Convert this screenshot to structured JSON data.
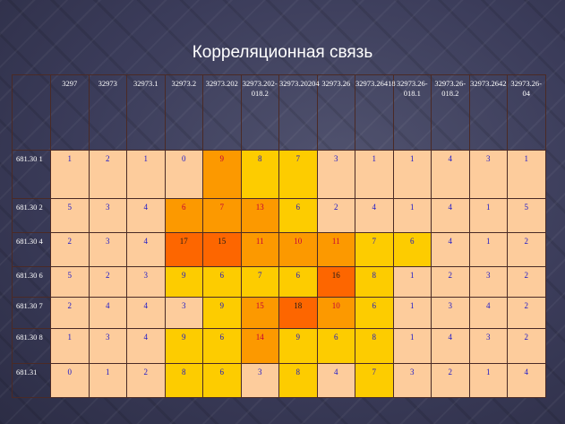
{
  "title": "Корреляционная связь",
  "colors": {
    "0": "#fdcc9c",
    "1": "#fdcc00",
    "2": "#fc9900",
    "3": "#fd6600",
    "background": "#3b3c5a",
    "text": "#1a17c9"
  },
  "columns": [
    "3297",
    "32973",
    "32973.1",
    "32973.2",
    "32973.202",
    "32973.202-018.2",
    "32973.20204",
    "32973.26",
    "32973.26418",
    "32973.26-018.1",
    "32973.26-018.2",
    "32973.2642",
    "32973.26-04"
  ],
  "rows": [
    {
      "label": "681.30 1",
      "values": [
        "1",
        "2",
        "1",
        "0",
        "9",
        "8",
        "7",
        "3",
        "1",
        "1",
        "4",
        "3",
        "1"
      ],
      "levels": [
        0,
        0,
        0,
        0,
        2,
        1,
        1,
        0,
        0,
        0,
        0,
        0,
        0
      ]
    },
    {
      "label": "681.30 2",
      "values": [
        "5",
        "3",
        "4",
        "6",
        "7",
        "13",
        "6",
        "2",
        "4",
        "1",
        "4",
        "1",
        "5"
      ],
      "levels": [
        0,
        0,
        0,
        2,
        2,
        2,
        1,
        0,
        0,
        0,
        0,
        0,
        0
      ]
    },
    {
      "label": "681.30 4",
      "values": [
        "2",
        "3",
        "4",
        "17",
        "15",
        "11",
        "10",
        "11",
        "7",
        "6",
        "4",
        "1",
        "2"
      ],
      "levels": [
        0,
        0,
        0,
        3,
        3,
        2,
        2,
        2,
        1,
        1,
        0,
        0,
        0
      ]
    },
    {
      "label": "681.30 6",
      "values": [
        "5",
        "2",
        "3",
        "9",
        "6",
        "7",
        "6",
        "16",
        "8",
        "1",
        "2",
        "3",
        "2"
      ],
      "levels": [
        0,
        0,
        0,
        1,
        1,
        1,
        1,
        3,
        1,
        0,
        0,
        0,
        0
      ]
    },
    {
      "label": "681.30 7",
      "values": [
        "2",
        "4",
        "4",
        "3",
        "9",
        "15",
        "18",
        "10",
        "6",
        "1",
        "3",
        "4",
        "2"
      ],
      "levels": [
        0,
        0,
        0,
        0,
        1,
        2,
        3,
        2,
        1,
        0,
        0,
        0,
        0
      ]
    },
    {
      "label": "681.30 8",
      "values": [
        "1",
        "3",
        "4",
        "9",
        "6",
        "14",
        "9",
        "6",
        "8",
        "1",
        "4",
        "3",
        "2"
      ],
      "levels": [
        0,
        0,
        0,
        1,
        1,
        2,
        1,
        1,
        1,
        0,
        0,
        0,
        0
      ]
    },
    {
      "label": "681.31",
      "values": [
        "0",
        "1",
        "2",
        "8",
        "6",
        "3",
        "8",
        "4",
        "7",
        "3",
        "2",
        "1",
        "4"
      ],
      "levels": [
        0,
        0,
        0,
        1,
        1,
        0,
        1,
        0,
        1,
        0,
        0,
        0,
        0
      ]
    }
  ]
}
